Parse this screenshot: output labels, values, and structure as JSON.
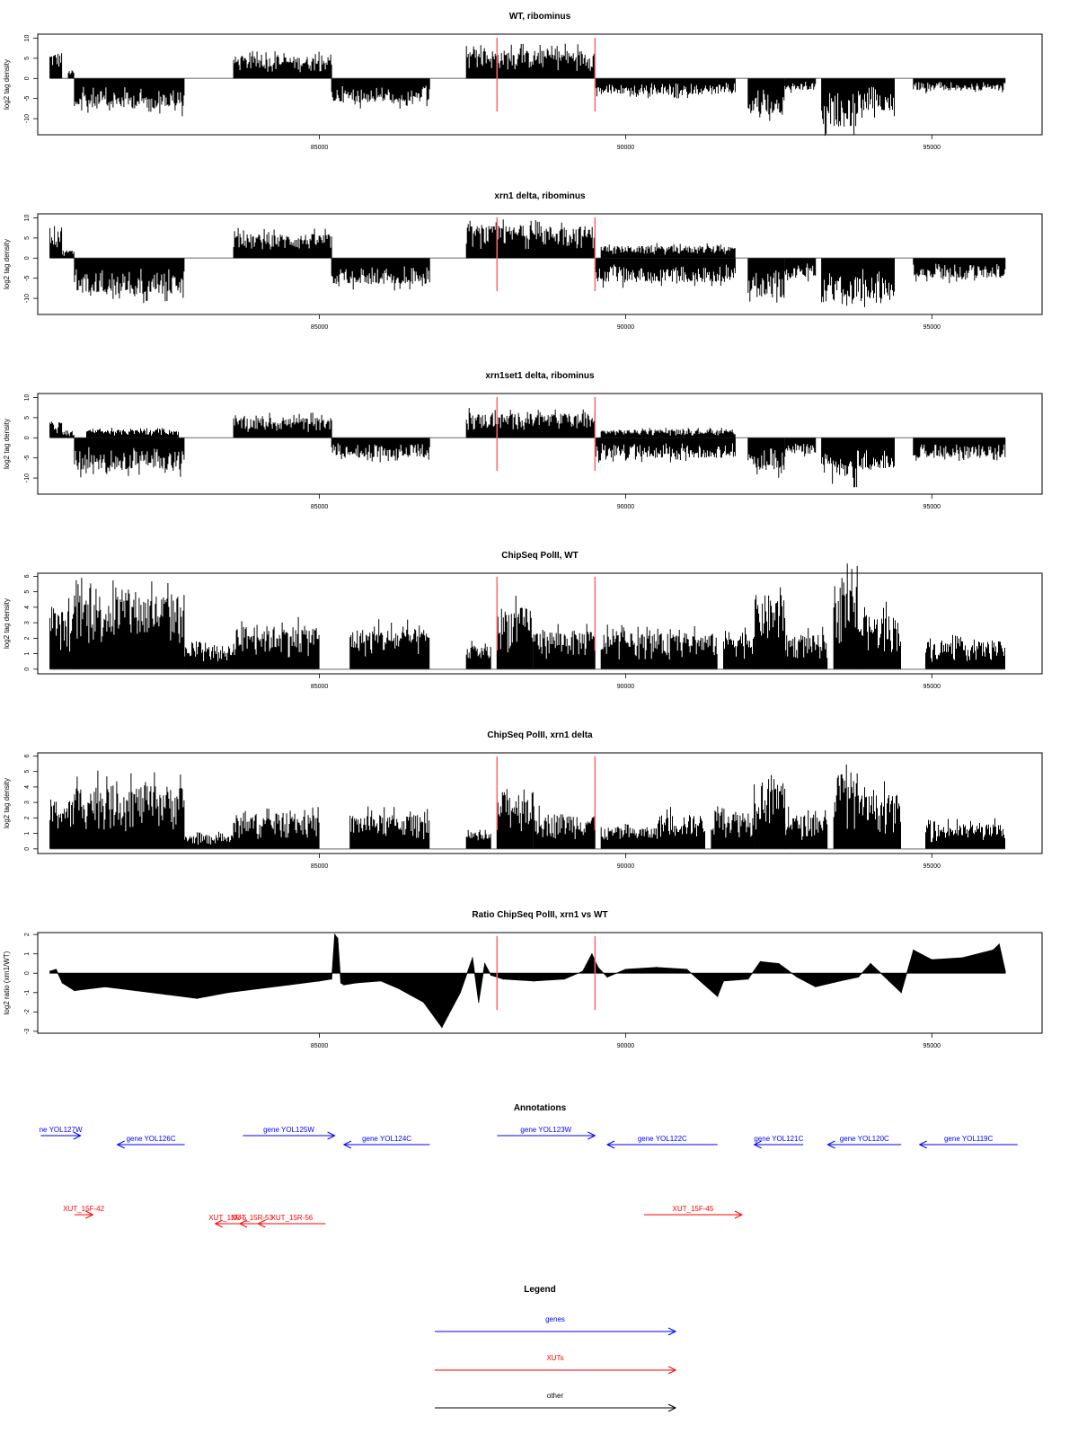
{
  "chart_data": [
    {
      "type": "bar",
      "title": "WT, ribominus",
      "ylabel": "log2 tag density",
      "xlim": [
        80400,
        96800
      ],
      "ylim": [
        -14,
        11
      ],
      "yticks": [
        10,
        5,
        0,
        -5,
        -10
      ],
      "xticks": [
        85000,
        90000,
        95000
      ],
      "markers": [
        87900,
        89500
      ],
      "segments": [
        {
          "start": 80600,
          "end": 80800,
          "sign": 1,
          "amp": 6.5
        },
        {
          "start": 80900,
          "end": 81000,
          "sign": 1,
          "amp": 2
        },
        {
          "start": 81000,
          "end": 82800,
          "sign": -1,
          "amp": 7.5
        },
        {
          "start": 83600,
          "end": 85200,
          "sign": 1,
          "amp": 5.5
        },
        {
          "start": 85200,
          "end": 86800,
          "sign": -1,
          "amp": 6
        },
        {
          "start": 87400,
          "end": 89500,
          "sign": 1,
          "amp": 7
        },
        {
          "start": 89500,
          "end": 91800,
          "sign": -1,
          "amp": 4
        },
        {
          "start": 92000,
          "end": 92600,
          "sign": -1,
          "amp": 9
        },
        {
          "start": 92600,
          "end": 93100,
          "sign": -1,
          "amp": 3
        },
        {
          "start": 93200,
          "end": 93800,
          "sign": -1,
          "amp": 12
        },
        {
          "start": 93800,
          "end": 94400,
          "sign": -1,
          "amp": 8
        },
        {
          "start": 94700,
          "end": 96200,
          "sign": -1,
          "amp": 3
        }
      ]
    },
    {
      "type": "bar",
      "title": "xrn1 delta, ribominus",
      "ylabel": "log2 tag density",
      "xlim": [
        80400,
        96800
      ],
      "ylim": [
        -14,
        11
      ],
      "yticks": [
        10,
        5,
        0,
        -5,
        -10
      ],
      "xticks": [
        85000,
        90000,
        95000
      ],
      "markers": [
        87900,
        89500
      ],
      "segments": [
        {
          "start": 80600,
          "end": 80800,
          "sign": 1,
          "amp": 8
        },
        {
          "start": 80800,
          "end": 81000,
          "sign": 1,
          "amp": 2
        },
        {
          "start": 81000,
          "end": 82800,
          "sign": -1,
          "amp": 9
        },
        {
          "start": 83600,
          "end": 85200,
          "sign": 1,
          "amp": 6
        },
        {
          "start": 85200,
          "end": 86800,
          "sign": -1,
          "amp": 6.5
        },
        {
          "start": 87400,
          "end": 89500,
          "sign": 1,
          "amp": 8
        },
        {
          "start": 89500,
          "end": 91800,
          "sign": -1,
          "amp": 6
        },
        {
          "start": 89600,
          "end": 91800,
          "sign": 1,
          "amp": 3
        },
        {
          "start": 92000,
          "end": 92600,
          "sign": -1,
          "amp": 10
        },
        {
          "start": 92600,
          "end": 93100,
          "sign": -1,
          "amp": 5
        },
        {
          "start": 93200,
          "end": 93800,
          "sign": -1,
          "amp": 12
        },
        {
          "start": 93800,
          "end": 94400,
          "sign": -1,
          "amp": 10
        },
        {
          "start": 94700,
          "end": 96200,
          "sign": -1,
          "amp": 5
        }
      ]
    },
    {
      "type": "bar",
      "title": "xrn1set1 delta, ribominus",
      "ylabel": "log2 tag density",
      "xlim": [
        80400,
        96800
      ],
      "ylim": [
        -14,
        11
      ],
      "yticks": [
        10,
        5,
        0,
        -5,
        -10
      ],
      "xticks": [
        85000,
        90000,
        95000
      ],
      "markers": [
        87900,
        89500
      ],
      "segments": [
        {
          "start": 80600,
          "end": 80800,
          "sign": 1,
          "amp": 4
        },
        {
          "start": 80800,
          "end": 81000,
          "sign": 1,
          "amp": 1.5
        },
        {
          "start": 81000,
          "end": 82800,
          "sign": -1,
          "amp": 8
        },
        {
          "start": 81200,
          "end": 82700,
          "sign": 1,
          "amp": 2
        },
        {
          "start": 83600,
          "end": 85200,
          "sign": 1,
          "amp": 5
        },
        {
          "start": 85200,
          "end": 86800,
          "sign": -1,
          "amp": 5
        },
        {
          "start": 87400,
          "end": 89500,
          "sign": 1,
          "amp": 6
        },
        {
          "start": 89500,
          "end": 91800,
          "sign": -1,
          "amp": 5
        },
        {
          "start": 89600,
          "end": 91800,
          "sign": 1,
          "amp": 2
        },
        {
          "start": 92000,
          "end": 92600,
          "sign": -1,
          "amp": 8
        },
        {
          "start": 92600,
          "end": 93100,
          "sign": -1,
          "amp": 4
        },
        {
          "start": 93200,
          "end": 93800,
          "sign": -1,
          "amp": 10
        },
        {
          "start": 93800,
          "end": 94400,
          "sign": -1,
          "amp": 8
        },
        {
          "start": 94700,
          "end": 96200,
          "sign": -1,
          "amp": 5
        }
      ]
    },
    {
      "type": "bar",
      "title": "ChipSeq PolII, WT",
      "ylabel": "log2 tag density",
      "xlim": [
        80400,
        96800
      ],
      "ylim": [
        -0.3,
        6.2
      ],
      "yticks": [
        0,
        1,
        2,
        3,
        4,
        5,
        6
      ],
      "xticks": [
        85000,
        90000,
        95000
      ],
      "markers": [
        87900,
        89500
      ],
      "segments": [
        {
          "start": 80600,
          "end": 81000,
          "sign": 1,
          "amp": 3.8
        },
        {
          "start": 81000,
          "end": 82800,
          "sign": 1,
          "amp": 4.9
        },
        {
          "start": 82800,
          "end": 83600,
          "sign": 1,
          "amp": 1.5
        },
        {
          "start": 83600,
          "end": 85000,
          "sign": 1,
          "amp": 2.8
        },
        {
          "start": 85500,
          "end": 86800,
          "sign": 1,
          "amp": 2.6
        },
        {
          "start": 87400,
          "end": 87800,
          "sign": 1,
          "amp": 1.5
        },
        {
          "start": 87900,
          "end": 88500,
          "sign": 1,
          "amp": 4
        },
        {
          "start": 88500,
          "end": 89500,
          "sign": 1,
          "amp": 2.5
        },
        {
          "start": 89600,
          "end": 91500,
          "sign": 1,
          "amp": 2.3
        },
        {
          "start": 91600,
          "end": 92100,
          "sign": 1,
          "amp": 2.5
        },
        {
          "start": 92100,
          "end": 92600,
          "sign": 1,
          "amp": 4.8
        },
        {
          "start": 92600,
          "end": 93300,
          "sign": 1,
          "amp": 2.2
        },
        {
          "start": 93400,
          "end": 93800,
          "sign": 1,
          "amp": 5.5
        },
        {
          "start": 93800,
          "end": 94500,
          "sign": 1,
          "amp": 3.5
        },
        {
          "start": 94900,
          "end": 96200,
          "sign": 1,
          "amp": 1.8
        }
      ]
    },
    {
      "type": "bar",
      "title": "ChipSeq PolII, xrn1 delta",
      "ylabel": "log2 tag density",
      "xlim": [
        80400,
        96800
      ],
      "ylim": [
        -0.3,
        6.2
      ],
      "yticks": [
        0,
        1,
        2,
        3,
        4,
        5,
        6
      ],
      "xticks": [
        85000,
        90000,
        95000
      ],
      "markers": [
        87900,
        89500
      ],
      "segments": [
        {
          "start": 80600,
          "end": 81000,
          "sign": 1,
          "amp": 3.2
        },
        {
          "start": 81000,
          "end": 82800,
          "sign": 1,
          "amp": 4.1
        },
        {
          "start": 82800,
          "end": 83600,
          "sign": 1,
          "amp": 0.9
        },
        {
          "start": 83600,
          "end": 85000,
          "sign": 1,
          "amp": 2.2
        },
        {
          "start": 85500,
          "end": 86800,
          "sign": 1,
          "amp": 2.2
        },
        {
          "start": 87400,
          "end": 87800,
          "sign": 1,
          "amp": 1
        },
        {
          "start": 87900,
          "end": 88500,
          "sign": 1,
          "amp": 3.7
        },
        {
          "start": 88500,
          "end": 89500,
          "sign": 1,
          "amp": 2.3
        },
        {
          "start": 89600,
          "end": 90500,
          "sign": 1,
          "amp": 1.4
        },
        {
          "start": 90500,
          "end": 91300,
          "sign": 1,
          "amp": 2.2
        },
        {
          "start": 91400,
          "end": 92100,
          "sign": 1,
          "amp": 2.5
        },
        {
          "start": 92100,
          "end": 92600,
          "sign": 1,
          "amp": 4.6
        },
        {
          "start": 92600,
          "end": 93300,
          "sign": 1,
          "amp": 2.2
        },
        {
          "start": 93400,
          "end": 93800,
          "sign": 1,
          "amp": 5
        },
        {
          "start": 93800,
          "end": 94500,
          "sign": 1,
          "amp": 3.5
        },
        {
          "start": 94900,
          "end": 96200,
          "sign": 1,
          "amp": 1.6
        }
      ]
    },
    {
      "type": "area",
      "title": "Ratio ChipSeq PolII, xrn1 vs WT",
      "ylabel": "log2 ratio (xrn1/WT)",
      "xlim": [
        80400,
        96800
      ],
      "ylim": [
        -3.1,
        2.1
      ],
      "yticks": [
        2,
        1,
        0,
        -1,
        -2,
        -3
      ],
      "xticks": [
        85000,
        90000,
        95000
      ],
      "markers": [
        87900,
        89500
      ],
      "x": [
        80600,
        80700,
        80800,
        81000,
        81500,
        82000,
        82500,
        83000,
        83500,
        84000,
        84500,
        85000,
        85200,
        85250,
        85300,
        85350,
        85400,
        85600,
        86000,
        86300,
        86700,
        87000,
        87100,
        87300,
        87500,
        87600,
        87700,
        87800,
        88000,
        88500,
        89000,
        89300,
        89450,
        89550,
        89700,
        90000,
        90500,
        91000,
        91500,
        91600,
        92000,
        92200,
        92500,
        92800,
        93100,
        93500,
        93800,
        94000,
        94300,
        94500,
        94700,
        95000,
        95500,
        96000,
        96100,
        96200
      ],
      "y": [
        0.1,
        0.2,
        -0.5,
        -0.9,
        -0.7,
        -0.9,
        -1.1,
        -1.3,
        -1.0,
        -0.8,
        -0.6,
        -0.4,
        -0.3,
        2.0,
        1.8,
        -0.5,
        -0.6,
        -0.5,
        -0.4,
        -0.8,
        -1.5,
        -2.8,
        -2.2,
        -1.0,
        0.8,
        -1.5,
        0.5,
        -0.1,
        -0.3,
        -0.4,
        -0.3,
        0.1,
        1.0,
        0.3,
        -0.2,
        0.2,
        0.3,
        0.2,
        -1.2,
        -0.4,
        -0.3,
        0.6,
        0.5,
        -0.2,
        -0.7,
        -0.4,
        -0.2,
        0.5,
        -0.4,
        -1.0,
        1.2,
        0.7,
        0.8,
        1.2,
        1.5,
        0.1
      ]
    }
  ],
  "annotations": {
    "title": "Annotations",
    "genes": [
      {
        "label": "ne YOL127W",
        "start": 80450,
        "end": 81100,
        "strand": "+",
        "row": 0
      },
      {
        "label": "gene YOL126C",
        "start": 81700,
        "end": 82800,
        "strand": "-",
        "row": 1
      },
      {
        "label": "gene YOL125W",
        "start": 83750,
        "end": 85250,
        "strand": "+",
        "row": 0
      },
      {
        "label": "gene YOL124C",
        "start": 85400,
        "end": 86800,
        "strand": "-",
        "row": 1
      },
      {
        "label": "gene YOL123W",
        "start": 87900,
        "end": 89500,
        "strand": "+",
        "row": 0
      },
      {
        "label": "gene YOL122C",
        "start": 89700,
        "end": 91500,
        "strand": "-",
        "row": 1
      },
      {
        "label": "gene YOL121C",
        "start": 92100,
        "end": 92900,
        "strand": "-",
        "row": 1
      },
      {
        "label": "gene YOL120C",
        "start": 93300,
        "end": 94500,
        "strand": "-",
        "row": 1
      },
      {
        "label": "gene YOL119C",
        "start": 94800,
        "end": 96400,
        "strand": "-",
        "row": 1
      }
    ],
    "xuts": [
      {
        "label": "XUT_15F-42",
        "start": 81000,
        "end": 81300,
        "strand": "+",
        "row": 0
      },
      {
        "label": "XUT_15R-5",
        "start": 83300,
        "end": 83700,
        "strand": "-",
        "row": 1
      },
      {
        "label": "XUT_15R-53",
        "start": 83700,
        "end": 84100,
        "strand": "-",
        "row": 1
      },
      {
        "label": "XUT_15R-56",
        "start": 84000,
        "end": 85100,
        "strand": "-",
        "row": 1
      },
      {
        "label": "XUT_15F-45",
        "start": 90300,
        "end": 91900,
        "strand": "+",
        "row": 0
      }
    ]
  },
  "legend": {
    "title": "Legend",
    "entries": [
      {
        "label": "genes",
        "color": "#0000ff"
      },
      {
        "label": "XUTs",
        "color": "#ff0000"
      },
      {
        "label": "other",
        "color": "#000000"
      }
    ]
  },
  "colors": {
    "marker": "#ff6666",
    "gene": "#0000ff",
    "xut": "#ff0000",
    "bars": "#000000",
    "baseline": "#999999"
  }
}
